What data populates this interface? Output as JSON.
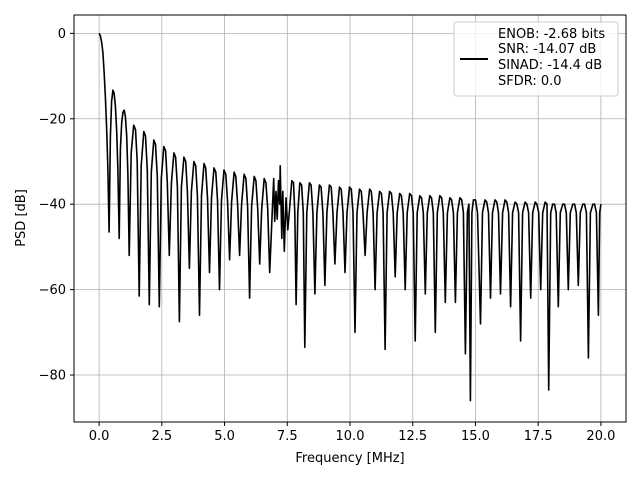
{
  "chart_data": {
    "type": "line",
    "title": "",
    "xlabel": "Frequency [MHz]",
    "ylabel": "PSD [dB]",
    "xlim": [
      -1.0,
      21.0
    ],
    "ylim": [
      -91.0,
      4.3
    ],
    "x_ticks": [
      0.0,
      2.5,
      5.0,
      7.5,
      10.0,
      12.5,
      15.0,
      17.5,
      20.0
    ],
    "x_tick_labels": [
      "0.0",
      "2.5",
      "5.0",
      "7.5",
      "10.0",
      "12.5",
      "15.0",
      "17.5",
      "20.0"
    ],
    "y_ticks": [
      0,
      -20,
      -40,
      -60,
      -80
    ],
    "y_tick_labels": [
      "0",
      "−20",
      "−40",
      "−60",
      "−80"
    ],
    "grid": true,
    "legend": {
      "placement": "upper-right",
      "entries": [
        "ENOB: -2.68 bits",
        "SNR: -14.07 dB",
        "SINAD: -14.4 dB",
        "SFDR: 0.0"
      ]
    },
    "series": [
      {
        "color": "#000000",
        "lobe_spacing_mhz": 0.4,
        "points": [
          [
            0.0,
            0.0
          ],
          [
            0.05,
            -0.5
          ],
          [
            0.1,
            -2.0
          ],
          [
            0.15,
            -4.5
          ],
          [
            0.2,
            -9.0
          ],
          [
            0.25,
            -15.0
          ],
          [
            0.3,
            -22.0
          ],
          [
            0.35,
            -32.0
          ],
          [
            0.4,
            -46.5
          ],
          [
            0.45,
            -24.0
          ],
          [
            0.5,
            -16.0
          ],
          [
            0.55,
            -13.3
          ],
          [
            0.6,
            -14.0
          ],
          [
            0.65,
            -17.0
          ],
          [
            0.7,
            -23.0
          ],
          [
            0.75,
            -32.0
          ],
          [
            0.8,
            -48.0
          ],
          [
            0.85,
            -27.0
          ],
          [
            0.9,
            -21.0
          ],
          [
            0.95,
            -18.5
          ],
          [
            1.0,
            -18.0
          ],
          [
            1.05,
            -19.5
          ],
          [
            1.1,
            -24.0
          ],
          [
            1.15,
            -33.0
          ],
          [
            1.2,
            -52.0
          ],
          [
            1.28,
            -28.0
          ],
          [
            1.38,
            -21.5
          ],
          [
            1.45,
            -22.5
          ],
          [
            1.52,
            -30.0
          ],
          [
            1.6,
            -61.5
          ],
          [
            1.68,
            -31.0
          ],
          [
            1.78,
            -23.0
          ],
          [
            1.85,
            -24.0
          ],
          [
            1.92,
            -32.0
          ],
          [
            2.0,
            -63.5
          ],
          [
            2.08,
            -32.5
          ],
          [
            2.18,
            -25.0
          ],
          [
            2.25,
            -26.0
          ],
          [
            2.32,
            -33.5
          ],
          [
            2.4,
            -64.0
          ],
          [
            2.48,
            -34.0
          ],
          [
            2.58,
            -26.5
          ],
          [
            2.65,
            -27.5
          ],
          [
            2.72,
            -35.0
          ],
          [
            2.8,
            -52.0
          ],
          [
            2.88,
            -35.0
          ],
          [
            2.98,
            -28.0
          ],
          [
            3.05,
            -29.0
          ],
          [
            3.12,
            -36.0
          ],
          [
            3.2,
            -67.5
          ],
          [
            3.28,
            -36.0
          ],
          [
            3.38,
            -29.0
          ],
          [
            3.45,
            -30.0
          ],
          [
            3.52,
            -37.0
          ],
          [
            3.6,
            -55.0
          ],
          [
            3.68,
            -37.0
          ],
          [
            3.78,
            -30.0
          ],
          [
            3.85,
            -31.0
          ],
          [
            3.92,
            -38.0
          ],
          [
            4.0,
            -66.0
          ],
          [
            4.08,
            -38.0
          ],
          [
            4.18,
            -30.5
          ],
          [
            4.25,
            -31.5
          ],
          [
            4.32,
            -38.5
          ],
          [
            4.4,
            -56.0
          ],
          [
            4.48,
            -38.5
          ],
          [
            4.58,
            -31.5
          ],
          [
            4.65,
            -32.5
          ],
          [
            4.72,
            -39.0
          ],
          [
            4.8,
            -60.0
          ],
          [
            4.88,
            -39.0
          ],
          [
            4.98,
            -32.0
          ],
          [
            5.05,
            -33.0
          ],
          [
            5.12,
            -39.5
          ],
          [
            5.2,
            -53.0
          ],
          [
            5.28,
            -39.5
          ],
          [
            5.38,
            -32.5
          ],
          [
            5.45,
            -33.5
          ],
          [
            5.52,
            -40.0
          ],
          [
            5.6,
            -52.0
          ],
          [
            5.68,
            -40.0
          ],
          [
            5.78,
            -33.0
          ],
          [
            5.85,
            -34.0
          ],
          [
            5.92,
            -40.5
          ],
          [
            6.0,
            -62.0
          ],
          [
            6.08,
            -40.5
          ],
          [
            6.18,
            -33.5
          ],
          [
            6.25,
            -34.5
          ],
          [
            6.32,
            -41.0
          ],
          [
            6.4,
            -54.0
          ],
          [
            6.48,
            -41.0
          ],
          [
            6.58,
            -34.0
          ],
          [
            6.65,
            -35.0
          ],
          [
            6.72,
            -41.0
          ],
          [
            6.8,
            -56.0
          ],
          [
            6.9,
            -42.0
          ],
          [
            6.96,
            -34.0
          ],
          [
            7.0,
            -44.0
          ],
          [
            7.05,
            -37.0
          ],
          [
            7.1,
            -43.5
          ],
          [
            7.15,
            -34.5
          ],
          [
            7.2,
            -40.0
          ],
          [
            7.22,
            -31.0
          ],
          [
            7.28,
            -48.0
          ],
          [
            7.32,
            -37.0
          ],
          [
            7.38,
            -51.0
          ],
          [
            7.45,
            -38.5
          ],
          [
            7.52,
            -46.0
          ],
          [
            7.6,
            -40.5
          ],
          [
            7.68,
            -34.5
          ],
          [
            7.75,
            -35.0
          ],
          [
            7.8,
            -42.0
          ],
          [
            7.85,
            -63.5
          ],
          [
            7.92,
            -42.0
          ],
          [
            8.0,
            -35.0
          ],
          [
            8.07,
            -35.5
          ],
          [
            8.14,
            -42.0
          ],
          [
            8.2,
            -73.5
          ],
          [
            8.28,
            -42.0
          ],
          [
            8.38,
            -35.0
          ],
          [
            8.45,
            -35.5
          ],
          [
            8.52,
            -42.0
          ],
          [
            8.6,
            -61.0
          ],
          [
            8.68,
            -42.0
          ],
          [
            8.78,
            -35.5
          ],
          [
            8.85,
            -36.0
          ],
          [
            8.92,
            -42.0
          ],
          [
            9.0,
            -59.0
          ],
          [
            9.08,
            -42.0
          ],
          [
            9.18,
            -35.5
          ],
          [
            9.25,
            -36.0
          ],
          [
            9.32,
            -42.0
          ],
          [
            9.4,
            -54.0
          ],
          [
            9.48,
            -42.0
          ],
          [
            9.58,
            -36.0
          ],
          [
            9.65,
            -36.5
          ],
          [
            9.72,
            -42.0
          ],
          [
            9.8,
            -56.0
          ],
          [
            9.88,
            -42.0
          ],
          [
            9.98,
            -36.0
          ],
          [
            10.05,
            -36.5
          ],
          [
            10.12,
            -42.0
          ],
          [
            10.2,
            -70.0
          ],
          [
            10.28,
            -42.0
          ],
          [
            10.38,
            -36.5
          ],
          [
            10.45,
            -37.0
          ],
          [
            10.52,
            -42.0
          ],
          [
            10.6,
            -52.0
          ],
          [
            10.68,
            -42.0
          ],
          [
            10.78,
            -36.5
          ],
          [
            10.85,
            -37.0
          ],
          [
            10.92,
            -42.0
          ],
          [
            11.0,
            -60.0
          ],
          [
            11.08,
            -42.0
          ],
          [
            11.18,
            -37.0
          ],
          [
            11.25,
            -37.5
          ],
          [
            11.32,
            -42.0
          ],
          [
            11.4,
            -74.0
          ],
          [
            11.48,
            -42.0
          ],
          [
            11.58,
            -37.0
          ],
          [
            11.65,
            -37.5
          ],
          [
            11.72,
            -42.0
          ],
          [
            11.8,
            -57.0
          ],
          [
            11.88,
            -42.0
          ],
          [
            11.98,
            -37.5
          ],
          [
            12.05,
            -38.0
          ],
          [
            12.12,
            -42.0
          ],
          [
            12.2,
            -60.0
          ],
          [
            12.28,
            -42.0
          ],
          [
            12.38,
            -37.5
          ],
          [
            12.45,
            -38.0
          ],
          [
            12.52,
            -42.0
          ],
          [
            12.6,
            -72.0
          ],
          [
            12.68,
            -42.0
          ],
          [
            12.78,
            -38.0
          ],
          [
            12.85,
            -38.5
          ],
          [
            12.92,
            -42.0
          ],
          [
            13.0,
            -61.0
          ],
          [
            13.08,
            -42.0
          ],
          [
            13.18,
            -38.0
          ],
          [
            13.25,
            -38.5
          ],
          [
            13.32,
            -42.0
          ],
          [
            13.4,
            -70.0
          ],
          [
            13.48,
            -42.0
          ],
          [
            13.58,
            -38.0
          ],
          [
            13.65,
            -38.5
          ],
          [
            13.72,
            -42.0
          ],
          [
            13.8,
            -63.0
          ],
          [
            13.88,
            -42.0
          ],
          [
            13.98,
            -38.5
          ],
          [
            14.05,
            -39.0
          ],
          [
            14.12,
            -42.0
          ],
          [
            14.2,
            -63.0
          ],
          [
            14.28,
            -42.0
          ],
          [
            14.38,
            -38.5
          ],
          [
            14.45,
            -39.0
          ],
          [
            14.52,
            -42.0
          ],
          [
            14.6,
            -75.0
          ],
          [
            14.68,
            -42.0
          ],
          [
            14.74,
            -40.0
          ],
          [
            14.8,
            -86.0
          ],
          [
            14.86,
            -42.0
          ],
          [
            14.92,
            -39.0
          ],
          [
            15.0,
            -39.0
          ],
          [
            15.08,
            -42.0
          ],
          [
            15.2,
            -68.0
          ],
          [
            15.28,
            -42.0
          ],
          [
            15.38,
            -39.0
          ],
          [
            15.45,
            -39.5
          ],
          [
            15.52,
            -42.0
          ],
          [
            15.6,
            -62.0
          ],
          [
            15.68,
            -42.0
          ],
          [
            15.78,
            -39.0
          ],
          [
            15.85,
            -39.5
          ],
          [
            15.92,
            -42.0
          ],
          [
            16.0,
            -61.0
          ],
          [
            16.08,
            -42.0
          ],
          [
            16.18,
            -39.0
          ],
          [
            16.25,
            -39.5
          ],
          [
            16.32,
            -42.0
          ],
          [
            16.4,
            -64.0
          ],
          [
            16.48,
            -42.0
          ],
          [
            16.58,
            -39.5
          ],
          [
            16.65,
            -40.0
          ],
          [
            16.72,
            -42.0
          ],
          [
            16.8,
            -72.0
          ],
          [
            16.88,
            -42.0
          ],
          [
            16.98,
            -39.5
          ],
          [
            17.05,
            -40.0
          ],
          [
            17.12,
            -42.0
          ],
          [
            17.2,
            -62.0
          ],
          [
            17.28,
            -42.0
          ],
          [
            17.38,
            -39.5
          ],
          [
            17.45,
            -40.0
          ],
          [
            17.52,
            -42.0
          ],
          [
            17.6,
            -60.0
          ],
          [
            17.68,
            -42.0
          ],
          [
            17.78,
            -39.5
          ],
          [
            17.85,
            -40.0
          ],
          [
            17.92,
            -83.5
          ],
          [
            18.0,
            -42.0
          ],
          [
            18.08,
            -40.0
          ],
          [
            18.15,
            -40.0
          ],
          [
            18.22,
            -42.0
          ],
          [
            18.3,
            -64.0
          ],
          [
            18.38,
            -42.0
          ],
          [
            18.48,
            -40.0
          ],
          [
            18.55,
            -40.0
          ],
          [
            18.62,
            -42.0
          ],
          [
            18.7,
            -60.0
          ],
          [
            18.78,
            -42.0
          ],
          [
            18.88,
            -40.0
          ],
          [
            18.95,
            -40.0
          ],
          [
            19.02,
            -42.0
          ],
          [
            19.1,
            -59.0
          ],
          [
            19.18,
            -42.0
          ],
          [
            19.28,
            -40.0
          ],
          [
            19.35,
            -40.0
          ],
          [
            19.42,
            -42.0
          ],
          [
            19.5,
            -76.0
          ],
          [
            19.58,
            -42.0
          ],
          [
            19.68,
            -40.0
          ],
          [
            19.75,
            -40.0
          ],
          [
            19.82,
            -42.0
          ],
          [
            19.9,
            -66.0
          ],
          [
            19.95,
            -42.0
          ],
          [
            20.0,
            -40.0
          ]
        ]
      }
    ]
  }
}
